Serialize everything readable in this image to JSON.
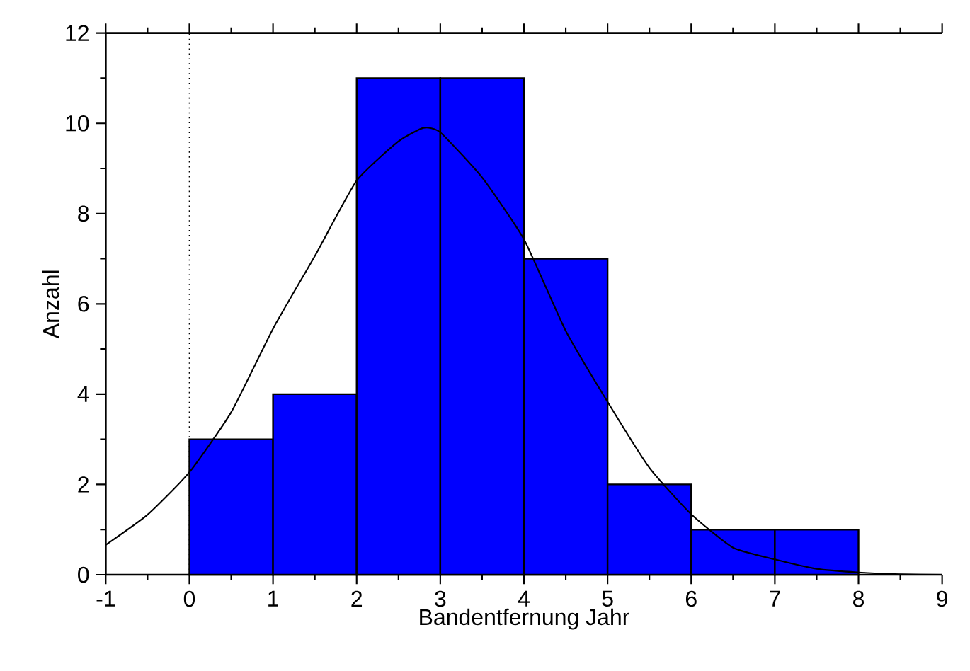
{
  "chart_data": {
    "type": "histogram",
    "xlabel": "Bandentfernung Jahr",
    "ylabel": "Anzahl",
    "series": [
      {
        "bins": [
          0,
          1,
          2,
          3,
          4,
          5,
          6,
          7,
          8
        ],
        "values": [
          3,
          4,
          11,
          11,
          7,
          2,
          1,
          1
        ],
        "color": "#0000ff"
      },
      {
        "type": "line",
        "color": "#000000",
        "x": [
          -1,
          -0.5,
          0,
          0.5,
          1,
          1.5,
          2,
          2.5,
          2.8,
          3,
          3.5,
          4,
          4.5,
          5,
          5.5,
          6,
          6.5,
          7,
          7.5,
          8,
          8.5,
          9
        ],
        "values": [
          0.66,
          1.33,
          2.27,
          3.6,
          5.45,
          7.06,
          8.73,
          9.6,
          9.9,
          9.8,
          8.8,
          7.43,
          5.4,
          3.83,
          2.37,
          1.34,
          0.6,
          0.34,
          0.13,
          0.05,
          0.01,
          0
        ]
      }
    ],
    "xlim": [
      -1,
      9
    ],
    "xticks": [
      -1,
      0,
      1,
      2,
      3,
      4,
      5,
      6,
      7,
      8,
      9
    ],
    "ylim": [
      0,
      12
    ],
    "yticks": [
      0,
      2,
      4,
      6,
      8,
      10,
      12
    ],
    "ref_lines": [
      {
        "axis": "x",
        "value": 0,
        "color": "#000000",
        "line_style": "dotted"
      }
    ]
  }
}
